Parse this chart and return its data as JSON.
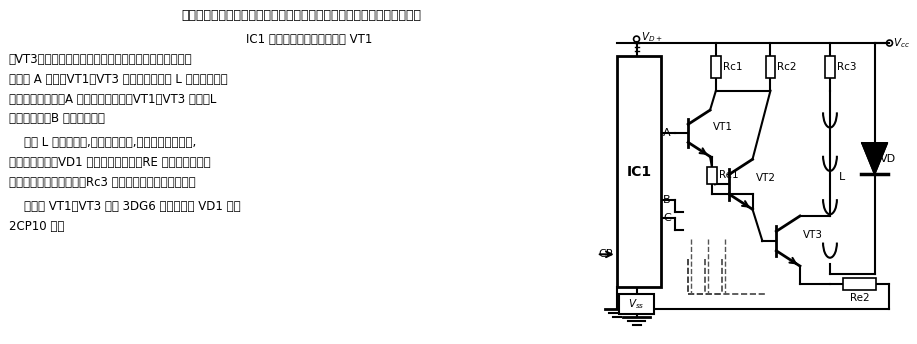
{
  "bg_color": "#ffffff",
  "line_color": "#000000",
  "text_color": "#000000",
  "title_line": "本电路可使步进电机的绕组在脉冲作用下依次导通，驱动步进电机工作。",
  "para1_lines": [
    "    IC1 为脉冲分配器，与晶体管 VT1",
    "～VT3构成驱动步进电机的功率接口电路。当高电平脉冲",
    "出现在 A 端时，VT1～VT3 导通，电机绕组 L 通电，带动电",
    "机转过一个角度。A 端上脉冲消失后，VT1～VT3 截止，L",
    "断电。此时，B 端出现脉冲。"
  ],
  "para2_lines": [
    "    图中 L 为电机绕组,实际应接三相,本图中只画出单相,",
    "省略另外两相。VD1 为保护用二极管；RE 为晶体管发射极",
    "电阻，用以稳定工作点；Rc3 起限流作用（几十欧姆）。"
  ],
  "para3_lines": [
    "    三极管 VT1～VT3 选用 3DG6 型。二极管 VD1 选用",
    "2CP10 型。"
  ]
}
